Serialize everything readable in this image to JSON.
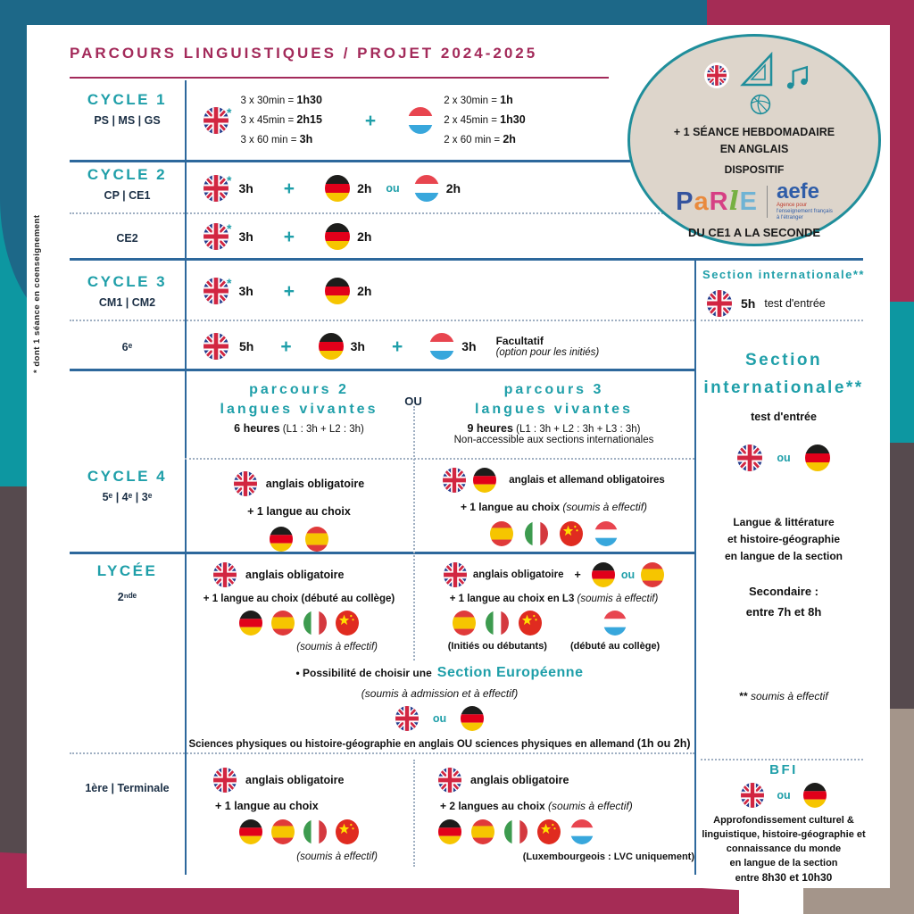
{
  "title": "PARCOURS LINGUISTIQUES / PROJET 2024-2025",
  "side_note": "* dont 1 séance en coenseignement",
  "misc": {
    "plus": "+",
    "ou": "ou",
    "ou_caps": "OU"
  },
  "badge": {
    "line1": "+ 1 SÉANCE HEBDOMADAIRE",
    "line2": "EN ANGLAIS",
    "line3": "DISPOSITIF",
    "parle": {
      "p": "P",
      "a": "a",
      "r": "R",
      "l": "l",
      "e": "E"
    },
    "aefe": "aefe",
    "aefe_sub1": "Agence pour",
    "aefe_sub2": "l'enseignement français",
    "aefe_sub3": "à l'étranger",
    "line4": "DU CE1 A LA SECONDE"
  },
  "cycle1": {
    "label": "CYCLE 1",
    "sub": "PS | MS | GS",
    "star": "*",
    "en1_pre": "3 x 30min = ",
    "en1_b": "1h30",
    "en2_pre": "3 x 45min = ",
    "en2_b": "2h15",
    "en3_pre": "3 x 60 min = ",
    "en3_b": "3h",
    "lu1_pre": "2 x 30min = ",
    "lu1_b": "1h",
    "lu2_pre": "2 x 45min = ",
    "lu2_b": "1h30",
    "lu3_pre": "2 x 60 min = ",
    "lu3_b": "2h"
  },
  "cycle2": {
    "label": "CYCLE 2",
    "sub": "CP | CE1",
    "star": "*",
    "en": "3h",
    "de": "2h",
    "lu": "2h",
    "ce2_label": "CE2",
    "ce2_en": "3h",
    "ce2_de": "2h"
  },
  "cycle3": {
    "label": "CYCLE 3",
    "sub": "CM1 | CM2",
    "star": "*",
    "en": "3h",
    "de": "2h",
    "r6_label": "6ᵉ",
    "r6_en": "5h",
    "r6_de": "3h",
    "r6_lu": "3h",
    "r6_note1": "Facultatif",
    "r6_note2": "(option pour les initiés)"
  },
  "cycle4": {
    "label": "CYCLE 4",
    "sub": "5ᵉ | 4ᵉ | 3ᵉ",
    "p2_t1": "parcours 2",
    "p2_t2": "langues vivantes",
    "p2_h_b": "6 heures",
    "p2_h": " (L1 : 3h + L2 : 3h)",
    "p3_t1": "parcours 3",
    "p3_t2": "langues vivantes",
    "p3_h_b": "9 heures",
    "p3_h": " (L1 : 3h + L2 : 3h + L3 : 3h)",
    "p3_note": "Non-accessible aux sections internationales",
    "left_l1": "anglais obligatoire",
    "left_l2": "+ 1 langue au choix",
    "right_l1": "anglais et allemand obligatoires",
    "right_l2": "+ 1 langue au choix ",
    "right_l2_it": "(soumis à effectif)"
  },
  "lycee": {
    "label": "LYCÉE",
    "sub": "2ⁿᵈᵉ",
    "left_l1": "anglais obligatoire",
    "left_l2": "+ 1 langue au choix (débuté au collège)",
    "left_note": "(soumis à effectif)",
    "right_l1": "anglais obligatoire",
    "right_l2": "+ 1 langue au choix en L3 ",
    "right_l2_it": "(soumis à effectif)",
    "right_note1": "(Initiés ou débutants)",
    "right_note2": "(débuté au collège)",
    "euro_pre": "• Possibilité de choisir une ",
    "euro_title": "Section Européenne",
    "euro_sub": "(soumis à admission et à effectif)",
    "euro_line": "Sciences physiques ou histoire-géographie en anglais OU sciences physiques en allemand ",
    "euro_line_b": "(1h ou 2h)"
  },
  "terminale": {
    "label": "1ère | Terminale",
    "left_l1": "anglais obligatoire",
    "left_l2": "+ 1 langue au choix",
    "left_note": "(soumis à effectif)",
    "right_l1": "anglais obligatoire",
    "right_l2": "+ 2 langues au choix ",
    "right_l2_it": "(soumis à effectif)",
    "right_note": "(Luxembourgeois : LVC uniquement)"
  },
  "right_col": {
    "si_title": "Section internationale**",
    "si_hours": "5h",
    "si_note": "test d'entrée",
    "si2_t1": "Section",
    "si2_t2": "internationale**",
    "si2_note": "test d'entrée",
    "body1": "Langue & littérature",
    "body2": "et histoire-géographie",
    "body3": "en langue de la section",
    "bold1": "Secondaire :",
    "bold2": "entre 7h et 8h",
    "fn_b": "**",
    "fn": " soumis à effectif",
    "bfi_title": "BFI",
    "bfi1": "Approfondissement culturel &",
    "bfi2": "linguistique, histoire-géographie et",
    "bfi3": "connaissance du monde",
    "bfi4": "en langue de la section",
    "bfi5_pre": "entre ",
    "bfi5_b": "8h30 et 10h30"
  },
  "colors": {
    "teal": "#1f9fa9",
    "maroon": "#a32a5a",
    "line_blue": "#2d689c"
  }
}
